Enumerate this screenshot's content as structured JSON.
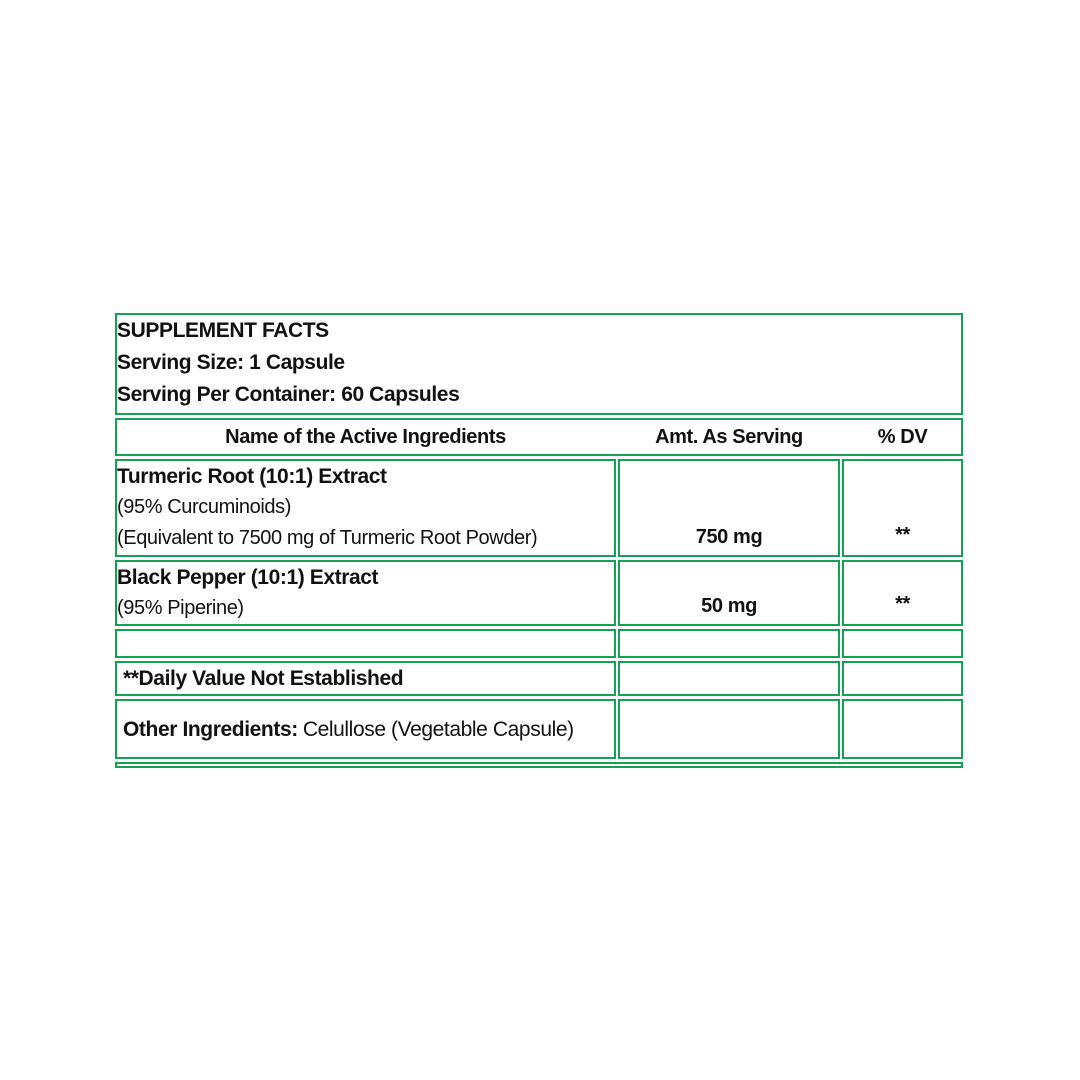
{
  "supplement_facts": {
    "title": "SUPPLEMENT FACTS",
    "serving_size": "Serving Size: 1 Capsule",
    "serving_per_container": "Serving Per Container: 60 Capsules",
    "header": {
      "name_col": "Name of the Active Ingredients",
      "amount_col": "Amt. As Serving",
      "dv_col": "% DV"
    },
    "ingredients": [
      {
        "name": "Turmeric Root (10:1) Extract",
        "detail1": "(95% Curcuminoids)",
        "detail2": "(Equivalent to 7500 mg of Turmeric Root Powder)",
        "amount": "750 mg",
        "dv": "**"
      },
      {
        "name": "Black Pepper (10:1) Extract",
        "detail1": "(95% Piperine)",
        "amount": "50 mg",
        "dv": "**"
      }
    ],
    "footnote": "**Daily Value Not Established",
    "other_ingredients": {
      "label": "Other Ingredients:",
      "value": "Celullose (Vegetable Capsule)"
    },
    "colors": {
      "green_fill": "#009A45",
      "green_border": "#14A156",
      "text": "#111111"
    }
  }
}
